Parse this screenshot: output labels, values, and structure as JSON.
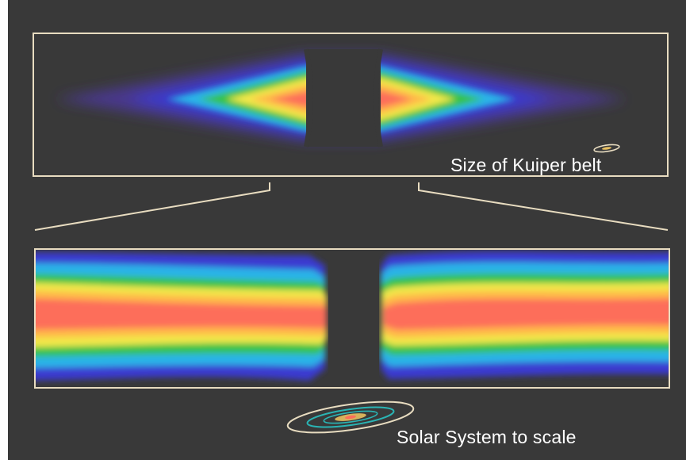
{
  "labels": {
    "kuiper": "Size of Kuiper belt",
    "solar_system": "Solar System to scale"
  },
  "colors": {
    "background": "#393939",
    "frame": "#e8dcc0",
    "gradient": [
      "#fd6e5a",
      "#ffb84a",
      "#f2e84a",
      "#34c24a",
      "#2ab4e8",
      "#3a3ad0",
      "#4e3aa0"
    ]
  },
  "icons": {
    "kuiper_marker": "ellipse-orbit-icon",
    "solar_system": "concentric-orbits-icon"
  }
}
